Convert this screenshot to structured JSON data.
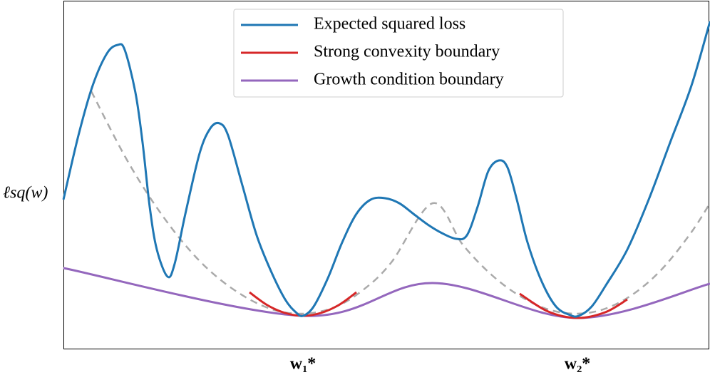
{
  "chart_data": {
    "type": "line",
    "ylabel": "ℓsq(w)",
    "xlim": [
      0,
      907
    ],
    "ylim": [
      0,
      488
    ],
    "xticks": [
      {
        "value": 336,
        "label": "w₁*"
      },
      {
        "value": 721,
        "label": "w₂*"
      }
    ],
    "legend": "upper center",
    "series": [
      {
        "name": "Expected squared loss",
        "color": "#1f77b4",
        "style": "solid",
        "x": [
          0,
          21,
          41,
          61,
          76,
          86,
          101,
          111,
          121,
          131,
          146,
          156,
          171,
          191,
          206,
          219,
          231,
          251,
          271,
          291,
          311,
          326,
          336,
          351,
          371,
          391,
          411,
          431,
          451,
          471,
          491,
          511,
          531,
          551,
          566,
          581,
          596,
          611,
          623,
          636,
          651,
          671,
          691,
          711,
          723,
          741,
          761,
          791,
          821,
          851,
          881,
          907
        ],
        "values": [
          210,
          300,
          370,
          415,
          427,
          420,
          360,
          290,
          200,
          140,
          102,
          120,
          190,
          275,
          310,
          317,
          300,
          230,
          160,
          110,
          70,
          52,
          47,
          60,
          100,
          150,
          190,
          210,
          212,
          205,
          190,
          175,
          163,
          155,
          160,
          200,
          250,
          265,
          255,
          210,
          150,
          95,
          60,
          48,
          47,
          60,
          90,
          140,
          210,
          290,
          370,
          460
        ]
      },
      {
        "name": "Strong convexity boundary",
        "color": "#d62728",
        "style": "solid",
        "x": [
          261,
          286,
          311,
          336,
          361,
          386,
          411,
          null,
          640,
          680,
          721,
          760,
          791
        ],
        "values": [
          80,
          62,
          51,
          47,
          51,
          62,
          80,
          null,
          78,
          53,
          44,
          52,
          70
        ]
      },
      {
        "name": "Growth condition boundary",
        "color": "#9467bd",
        "style": "solid",
        "x": [
          0,
          336,
          518,
          721,
          907
        ],
        "values": [
          114,
          47,
          93,
          44,
          92
        ]
      },
      {
        "color": "#aaaaaa",
        "style": "dashed",
        "x": [
          39,
          90,
          140,
          190,
          240,
          290,
          336,
          380,
          420,
          460,
          518,
          560,
          600,
          640,
          680,
          721,
          760,
          800,
          840,
          880,
          907
        ],
        "values": [
          362,
          264,
          186,
          125,
          83,
          57,
          50,
          59,
          83,
          122,
          205,
          147,
          105,
          75,
          56,
          50,
          57,
          78,
          113,
          163,
          205
        ]
      }
    ]
  }
}
